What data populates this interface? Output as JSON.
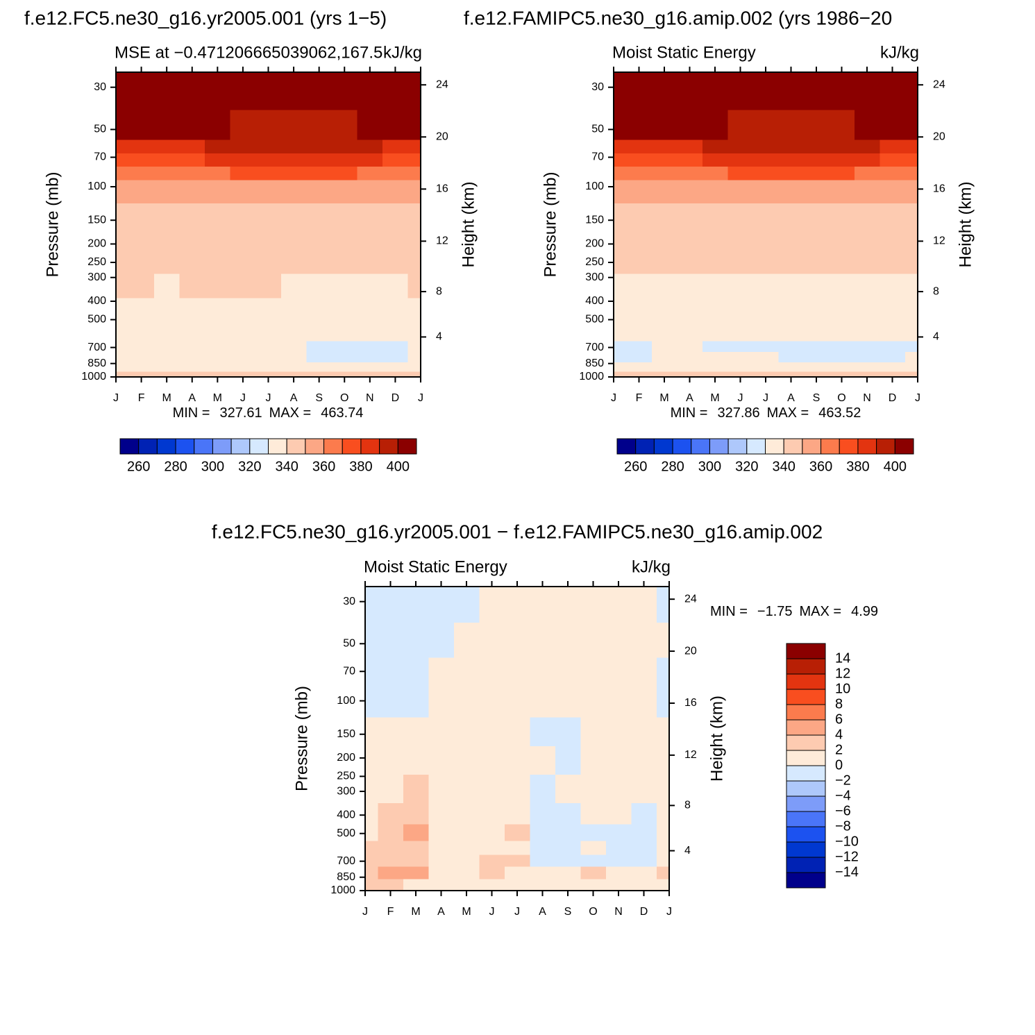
{
  "chart_data": [
    {
      "type": "contour",
      "title": "f.e12.FC5.ne30_g16.yr2005.001 (yrs 1−5)",
      "subtitle_left": "MSE at −0.471206665039062,167.5",
      "subtitle_right": "kJ/kg",
      "ylabel": "Pressure (mb)",
      "y2label": "Height (km)",
      "categories": [
        "J",
        "F",
        "M",
        "A",
        "M",
        "J",
        "J",
        "A",
        "S",
        "O",
        "N",
        "D",
        "J"
      ],
      "ylim": [
        1000,
        25
      ],
      "ylog": true,
      "yticks": [
        30,
        50,
        70,
        100,
        150,
        200,
        250,
        300,
        400,
        500,
        700,
        850,
        1000
      ],
      "y2ticks": [
        4,
        8,
        12,
        16,
        20,
        24
      ],
      "min_label": "MIN =",
      "min": 327.61,
      "max_label": "MAX =",
      "max": 463.74,
      "levels": [
        260,
        270,
        280,
        290,
        300,
        310,
        320,
        330,
        340,
        350,
        360,
        370,
        380,
        390,
        400
      ],
      "colors": [
        "#00008b",
        "#0022b4",
        "#0038d0",
        "#1c52f0",
        "#4a75f8",
        "#7d9cf9",
        "#aec8fb",
        "#d6e9fe",
        "#feebd9",
        "#fdcbb1",
        "#fca785",
        "#fc7b4d",
        "#f94e1f",
        "#e33410",
        "#b81f05",
        "#8b0000"
      ],
      "colorbar_ticks": [
        260,
        280,
        300,
        320,
        340,
        360,
        380,
        400
      ],
      "y": [
        30,
        52,
        62,
        72,
        85,
        100,
        150,
        250,
        330,
        450,
        600,
        700,
        780,
        900,
        980
      ],
      "z": [
        [
          420,
          420,
          420,
          420,
          420,
          420,
          420,
          420,
          420,
          420,
          420,
          420,
          420
        ],
        [
          402,
          402,
          402,
          401,
          400,
          398,
          397,
          397,
          398,
          399,
          400,
          401,
          402
        ],
        [
          388,
          388,
          388,
          389,
          391,
          393,
          394,
          394,
          393,
          392,
          390,
          389,
          388
        ],
        [
          377,
          377,
          377,
          378,
          381,
          383,
          384,
          384,
          383,
          382,
          380,
          378,
          377
        ],
        [
          365,
          365,
          365,
          366,
          368,
          372,
          373,
          373,
          372,
          371,
          369,
          367,
          365
        ],
        [
          355,
          355,
          355,
          355,
          356,
          357,
          358,
          359,
          358,
          357,
          356,
          355,
          355
        ],
        [
          345,
          345,
          345,
          345,
          345,
          345,
          345,
          345,
          345,
          345,
          345,
          345,
          345
        ],
        [
          342,
          342,
          342,
          342,
          342,
          342,
          342,
          342,
          342,
          342,
          342,
          342,
          342
        ],
        [
          340.5,
          340.5,
          339,
          340.5,
          340.5,
          340.5,
          340.5,
          339,
          339,
          339,
          339,
          339,
          340.5
        ],
        [
          335,
          335,
          335,
          335,
          335,
          335,
          335,
          335,
          335,
          335,
          335,
          335,
          335
        ],
        [
          333,
          333,
          333,
          333,
          333,
          333,
          333,
          333,
          333,
          333,
          333,
          333,
          333
        ],
        [
          334,
          334,
          334,
          334,
          334,
          334,
          334,
          333,
          328,
          328,
          328,
          328,
          332
        ],
        [
          334,
          334,
          334,
          334,
          334,
          334,
          334,
          333,
          329,
          329,
          329,
          329,
          332
        ],
        [
          335,
          335,
          335,
          335,
          335,
          335,
          335,
          335,
          335,
          335,
          335,
          335,
          335
        ],
        [
          342,
          342,
          342,
          342,
          342,
          342,
          342,
          342,
          342,
          342,
          342,
          342,
          342
        ]
      ]
    },
    {
      "type": "contour",
      "title": "f.e12.FAMIPC5.ne30_g16.amip.002 (yrs 1986−20",
      "subtitle_left": "Moist Static Energy",
      "subtitle_right": "kJ/kg",
      "ylabel": "Pressure (mb)",
      "y2label": "Height (km)",
      "categories": [
        "J",
        "F",
        "M",
        "A",
        "M",
        "J",
        "J",
        "A",
        "S",
        "O",
        "N",
        "D",
        "J"
      ],
      "ylim": [
        1000,
        25
      ],
      "ylog": true,
      "yticks": [
        30,
        50,
        70,
        100,
        150,
        200,
        250,
        300,
        400,
        500,
        700,
        850,
        1000
      ],
      "y2ticks": [
        4,
        8,
        12,
        16,
        20,
        24
      ],
      "min_label": "MIN =",
      "min": 327.86,
      "max_label": "MAX =",
      "max": 463.52,
      "levels": [
        260,
        270,
        280,
        290,
        300,
        310,
        320,
        330,
        340,
        350,
        360,
        370,
        380,
        390,
        400
      ],
      "colors": [
        "#00008b",
        "#0022b4",
        "#0038d0",
        "#1c52f0",
        "#4a75f8",
        "#7d9cf9",
        "#aec8fb",
        "#d6e9fe",
        "#feebd9",
        "#fdcbb1",
        "#fca785",
        "#fc7b4d",
        "#f94e1f",
        "#e33410",
        "#b81f05",
        "#8b0000"
      ],
      "colorbar_ticks": [
        260,
        280,
        300,
        320,
        340,
        360,
        380,
        400
      ],
      "y": [
        30,
        52,
        62,
        72,
        85,
        100,
        150,
        250,
        330,
        450,
        600,
        700,
        780,
        900,
        980
      ],
      "z": [
        [
          420,
          420,
          420,
          420,
          420,
          420,
          420,
          420,
          420,
          420,
          420,
          420,
          420
        ],
        [
          402,
          402,
          402,
          401,
          400,
          398,
          397,
          397,
          398,
          399,
          400,
          401,
          402
        ],
        [
          388,
          388,
          388,
          389,
          391,
          393,
          394,
          394,
          393,
          392,
          390,
          389,
          388
        ],
        [
          377,
          377,
          377,
          378,
          381,
          383,
          384,
          384,
          383,
          382,
          380,
          378,
          377
        ],
        [
          365,
          365,
          365,
          366,
          368,
          372,
          373,
          373,
          372,
          371,
          369,
          367,
          365
        ],
        [
          355,
          355,
          355,
          355,
          356,
          357,
          358,
          359,
          358,
          357,
          356,
          355,
          355
        ],
        [
          345,
          345,
          345,
          345,
          345,
          345,
          345,
          345,
          345,
          345,
          345,
          345,
          345
        ],
        [
          342,
          342,
          342,
          342,
          342,
          342,
          342,
          342,
          342,
          342,
          342,
          342,
          342
        ],
        [
          339,
          339,
          339,
          339,
          339,
          339,
          339,
          339,
          339,
          339,
          339,
          339,
          339
        ],
        [
          335,
          335,
          335,
          335,
          335,
          335,
          335,
          335,
          335,
          335,
          335,
          335,
          335
        ],
        [
          333,
          333,
          333,
          333,
          333,
          333,
          333,
          333,
          333,
          333,
          333,
          333,
          333
        ],
        [
          328,
          328,
          331,
          333,
          329,
          329,
          329,
          328,
          327,
          327,
          327,
          328,
          328
        ],
        [
          328,
          328,
          331,
          333,
          331,
          331,
          331,
          329,
          327,
          327,
          327,
          329,
          331
        ],
        [
          335,
          335,
          335,
          335,
          335,
          335,
          335,
          335,
          335,
          335,
          335,
          335,
          335
        ],
        [
          342,
          342,
          342,
          342,
          342,
          342,
          342,
          342,
          342,
          342,
          342,
          342,
          342
        ]
      ]
    },
    {
      "type": "contour",
      "title": "f.e12.FC5.ne30_g16.yr2005.001 − f.e12.FAMIPC5.ne30_g16.amip.002",
      "subtitle_left": "Moist Static Energy",
      "subtitle_right": "kJ/kg",
      "ylabel": "Pressure (mb)",
      "y2label": "Height (km)",
      "categories": [
        "J",
        "F",
        "M",
        "A",
        "M",
        "J",
        "J",
        "A",
        "S",
        "O",
        "N",
        "D",
        "J"
      ],
      "ylim": [
        1000,
        25
      ],
      "ylog": true,
      "yticks": [
        30,
        50,
        70,
        100,
        150,
        200,
        250,
        300,
        400,
        500,
        700,
        850,
        1000
      ],
      "y2ticks": [
        4,
        8,
        12,
        16,
        20,
        24
      ],
      "min_label": "MIN =",
      "min": {
        "value": -1.75,
        "label": "−1.75"
      },
      "max_label": "MAX =",
      "max": 4.99,
      "levels": [
        -14,
        -12,
        -10,
        -8,
        -6,
        -4,
        -2,
        0,
        2,
        4,
        6,
        8,
        10,
        12,
        14
      ],
      "colors": [
        "#00008b",
        "#0022b4",
        "#0038d0",
        "#1c52f0",
        "#4a75f8",
        "#7d9cf9",
        "#aec8fb",
        "#d6e9fe",
        "#feebd9",
        "#fdcbb1",
        "#fca785",
        "#fc7b4d",
        "#f94e1f",
        "#e33410",
        "#b81f05",
        "#8b0000"
      ],
      "colorbar_ticks": [
        {
          "value": -14,
          "label": "−14"
        },
        {
          "value": -12,
          "label": "−12"
        },
        {
          "value": -10,
          "label": "−10"
        },
        {
          "value": -8,
          "label": "−8"
        },
        {
          "value": -6,
          "label": "−6"
        },
        {
          "value": -4,
          "label": "−4"
        },
        {
          "value": -2,
          "label": "−2"
        },
        0,
        2,
        4,
        6,
        8,
        10,
        12,
        14
      ],
      "y": [
        30,
        50,
        70,
        100,
        150,
        200,
        300,
        400,
        500,
        600,
        700,
        800,
        950
      ],
      "z": [
        [
          -0.5,
          -0.5,
          -0.5,
          -0.5,
          -0.3,
          0.5,
          0.5,
          0.5,
          0.5,
          0.5,
          0.5,
          0.5,
          -0.3
        ],
        [
          -0.5,
          -0.5,
          -0.5,
          -0.5,
          0.3,
          0.5,
          0.5,
          0.5,
          0.5,
          0.5,
          0.5,
          0.5,
          0.3
        ],
        [
          -0.5,
          -0.5,
          -0.5,
          0.3,
          0.5,
          0.5,
          0.5,
          0.5,
          0.5,
          0.5,
          0.5,
          0.5,
          -0.3
        ],
        [
          -0.3,
          -0.3,
          -0.3,
          0.3,
          0.5,
          0.5,
          0.5,
          0.5,
          0.5,
          0.5,
          0.5,
          0.5,
          -0.3
        ],
        [
          0.5,
          0.5,
          0.5,
          0.5,
          0.5,
          0.5,
          0.5,
          -0.3,
          -0.3,
          0.5,
          0.5,
          0.5,
          0.5
        ],
        [
          0.5,
          0.5,
          1,
          0.5,
          0.5,
          0.5,
          0.5,
          0.5,
          -0.3,
          0.5,
          0.5,
          0.5,
          0.5
        ],
        [
          0.5,
          1.5,
          2.5,
          1,
          0.5,
          0.5,
          0.5,
          -0.3,
          0.5,
          0.5,
          0.5,
          0.5,
          0.5
        ],
        [
          0.5,
          2.5,
          2.5,
          1.5,
          0.5,
          0.5,
          0.5,
          -0.3,
          -0.3,
          0.5,
          0.5,
          -0.3,
          0.5
        ],
        [
          1,
          2.5,
          4.5,
          1.5,
          0.5,
          0.5,
          2.5,
          -0.3,
          -0.3,
          -0.3,
          -0.3,
          -0.3,
          0.5
        ],
        [
          2,
          2.5,
          3,
          1.5,
          0.5,
          0.5,
          0.5,
          -0.3,
          -0.3,
          0.5,
          -0.3,
          -0.3,
          0.5
        ],
        [
          2.5,
          3,
          3.5,
          1.5,
          0.5,
          2.5,
          2.5,
          -0.3,
          -0.3,
          -0.3,
          -0.3,
          -0.3,
          0.5
        ],
        [
          2.5,
          4.5,
          4.5,
          1.5,
          0.5,
          2.5,
          0.5,
          0.5,
          0.5,
          2.5,
          0.5,
          0.5,
          2.5
        ],
        [
          2.5,
          2.5,
          1,
          0.5,
          0.5,
          0.5,
          0.5,
          0.5,
          0.5,
          0.5,
          0.5,
          0.5,
          0.5
        ]
      ]
    }
  ]
}
